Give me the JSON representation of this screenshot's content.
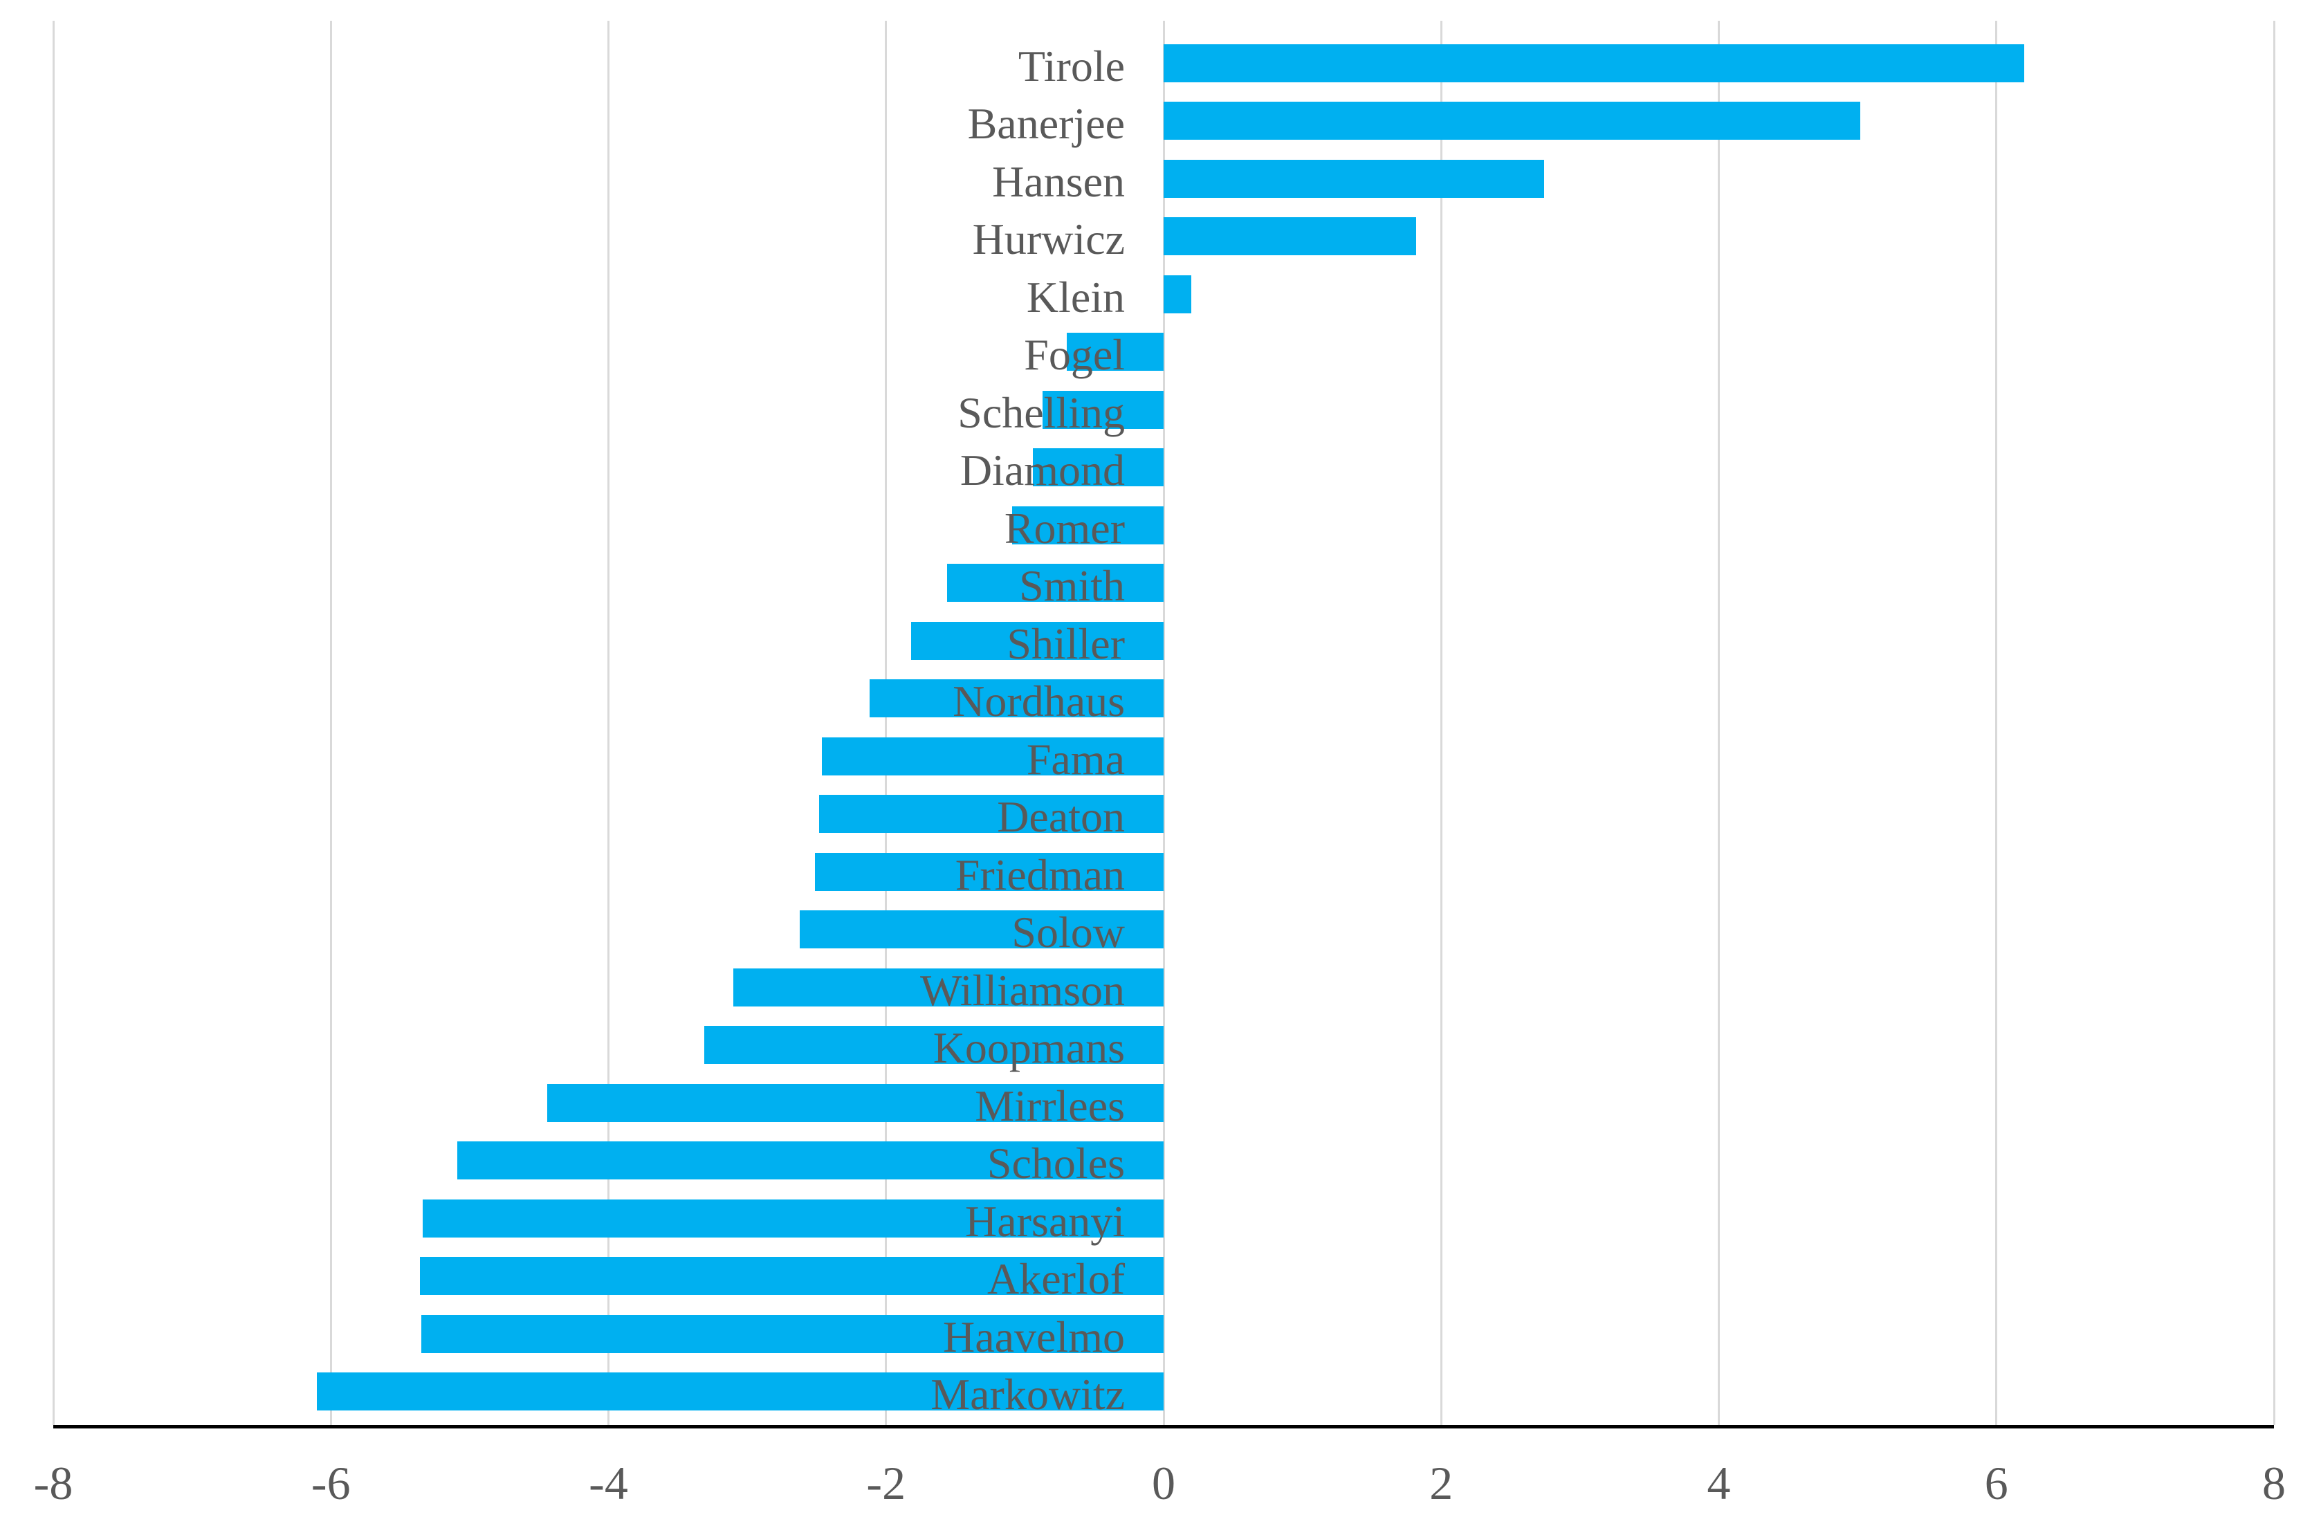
{
  "chart_data": {
    "type": "bar",
    "orientation": "horizontal",
    "title": "",
    "xlabel": "",
    "ylabel": "",
    "legend": false,
    "grid": true,
    "xlim": [
      -8,
      8
    ],
    "x_ticks": [
      -8,
      -6,
      -4,
      -2,
      0,
      2,
      4,
      6,
      8
    ],
    "x_tick_labels": [
      "-8",
      "-6",
      "-4",
      "-2",
      "0",
      "2",
      "4",
      "6",
      "8"
    ],
    "categories": [
      "Tirole",
      "Banerjee",
      "Hansen",
      "Hurwicz",
      "Klein",
      "Fogel",
      "Schelling",
      "Diamond",
      "Romer",
      "Smith",
      "Shiller",
      "Nordhaus",
      "Fama",
      "Deaton",
      "Friedman",
      "Solow",
      "Williamson",
      "Koopmans",
      "Mirrlees",
      "Scholes",
      "Harsanyi",
      "Akerlof",
      "Haavelmo",
      "Markowitz"
    ],
    "values": [
      6.2,
      5.02,
      2.74,
      1.82,
      0.2,
      -0.7,
      -0.87,
      -0.94,
      -1.09,
      -1.56,
      -1.82,
      -2.12,
      -2.46,
      -2.48,
      -2.51,
      -2.62,
      -3.1,
      -3.31,
      -4.44,
      -5.09,
      -5.34,
      -5.36,
      -5.35,
      -6.1
    ],
    "colors": {
      "bar": "#00B0F0",
      "gridline": "#D9D9D9",
      "axis_line": "#000000",
      "label_text": "#595959",
      "background": "#FFFFFF"
    }
  }
}
